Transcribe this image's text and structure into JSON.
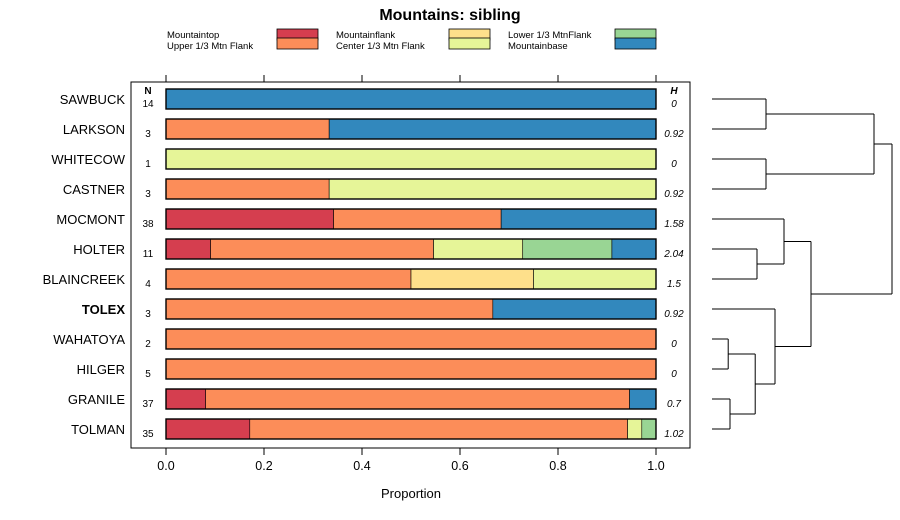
{
  "chart_data": {
    "type": "stacked-bar",
    "title": "Mountains: sibling",
    "xlabel": "Proportion",
    "xlim": [
      0,
      1
    ],
    "xticks": [
      "0.0",
      "0.2",
      "0.4",
      "0.6",
      "0.8",
      "1.0"
    ],
    "n_header": "N",
    "h_header": "H",
    "categories": [
      {
        "name": "Mountaintop",
        "color": "#d53e4f"
      },
      {
        "name": "Upper 1/3 Mtn Flank",
        "color": "#fc8d59"
      },
      {
        "name": "Mountainflank",
        "color": "#fee08b"
      },
      {
        "name": "Center 1/3 Mtn Flank",
        "color": "#e6f598"
      },
      {
        "name": "Lower 1/3 MtnFlank",
        "color": "#99d594"
      },
      {
        "name": "Mountainbase",
        "color": "#3288bd"
      }
    ],
    "rows": [
      {
        "label": "SAWBUCK",
        "bold": false,
        "n": "14",
        "h": "0",
        "values": [
          0,
          0,
          0,
          0,
          0,
          1
        ]
      },
      {
        "label": "LARKSON",
        "bold": false,
        "n": "3",
        "h": "0.92",
        "values": [
          0,
          0.333,
          0,
          0,
          0,
          0.667
        ]
      },
      {
        "label": "WHITECOW",
        "bold": false,
        "n": "1",
        "h": "0",
        "values": [
          0,
          0,
          0,
          1,
          0,
          0
        ]
      },
      {
        "label": "CASTNER",
        "bold": false,
        "n": "3",
        "h": "0.92",
        "values": [
          0,
          0.333,
          0,
          0.667,
          0,
          0
        ]
      },
      {
        "label": "MOCMONT",
        "bold": false,
        "n": "38",
        "h": "1.58",
        "values": [
          0.342,
          0.342,
          0,
          0,
          0,
          0.316
        ]
      },
      {
        "label": "HOLTER",
        "bold": false,
        "n": "11",
        "h": "2.04",
        "values": [
          0.091,
          0.455,
          0,
          0.182,
          0.182,
          0.09
        ]
      },
      {
        "label": "BLAINCREEK",
        "bold": false,
        "n": "4",
        "h": "1.5",
        "values": [
          0,
          0.5,
          0.25,
          0.25,
          0,
          0
        ]
      },
      {
        "label": "TOLEX",
        "bold": true,
        "n": "3",
        "h": "0.92",
        "values": [
          0,
          0.667,
          0,
          0,
          0,
          0.333
        ]
      },
      {
        "label": "WAHATOYA",
        "bold": false,
        "n": "2",
        "h": "0",
        "values": [
          0,
          1,
          0,
          0,
          0,
          0
        ]
      },
      {
        "label": "HILGER",
        "bold": false,
        "n": "5",
        "h": "0",
        "values": [
          0,
          1,
          0,
          0,
          0,
          0
        ]
      },
      {
        "label": "GRANILE",
        "bold": false,
        "n": "37",
        "h": "0.7",
        "values": [
          0.081,
          0.865,
          0,
          0,
          0,
          0.054
        ]
      },
      {
        "label": "TOLMAN",
        "bold": false,
        "n": "35",
        "h": "1.02",
        "values": [
          0.171,
          0.771,
          0,
          0.029,
          0.029,
          0
        ]
      }
    ],
    "dendrogram": {
      "description": "hierarchical clustering of rows (right margin)",
      "merges": [
        {
          "id": "A",
          "children": [
            0,
            1
          ],
          "height": 0.3
        },
        {
          "id": "B",
          "children": [
            2,
            3
          ],
          "height": 0.3
        },
        {
          "id": "C",
          "children": [
            "A",
            "B"
          ],
          "height": 0.9
        },
        {
          "id": "D",
          "children": [
            5,
            6
          ],
          "height": 0.25
        },
        {
          "id": "E",
          "children": [
            4,
            "D"
          ],
          "height": 0.4
        },
        {
          "id": "F",
          "children": [
            8,
            9
          ],
          "height": 0.09
        },
        {
          "id": "G",
          "children": [
            10,
            11
          ],
          "height": 0.1
        },
        {
          "id": "H",
          "children": [
            "F",
            "G"
          ],
          "height": 0.24
        },
        {
          "id": "I",
          "children": [
            7,
            "H"
          ],
          "height": 0.35
        },
        {
          "id": "J",
          "children": [
            "E",
            "I"
          ],
          "height": 0.55
        },
        {
          "id": "K",
          "children": [
            "C",
            "J"
          ],
          "height": 1.0
        }
      ]
    }
  }
}
